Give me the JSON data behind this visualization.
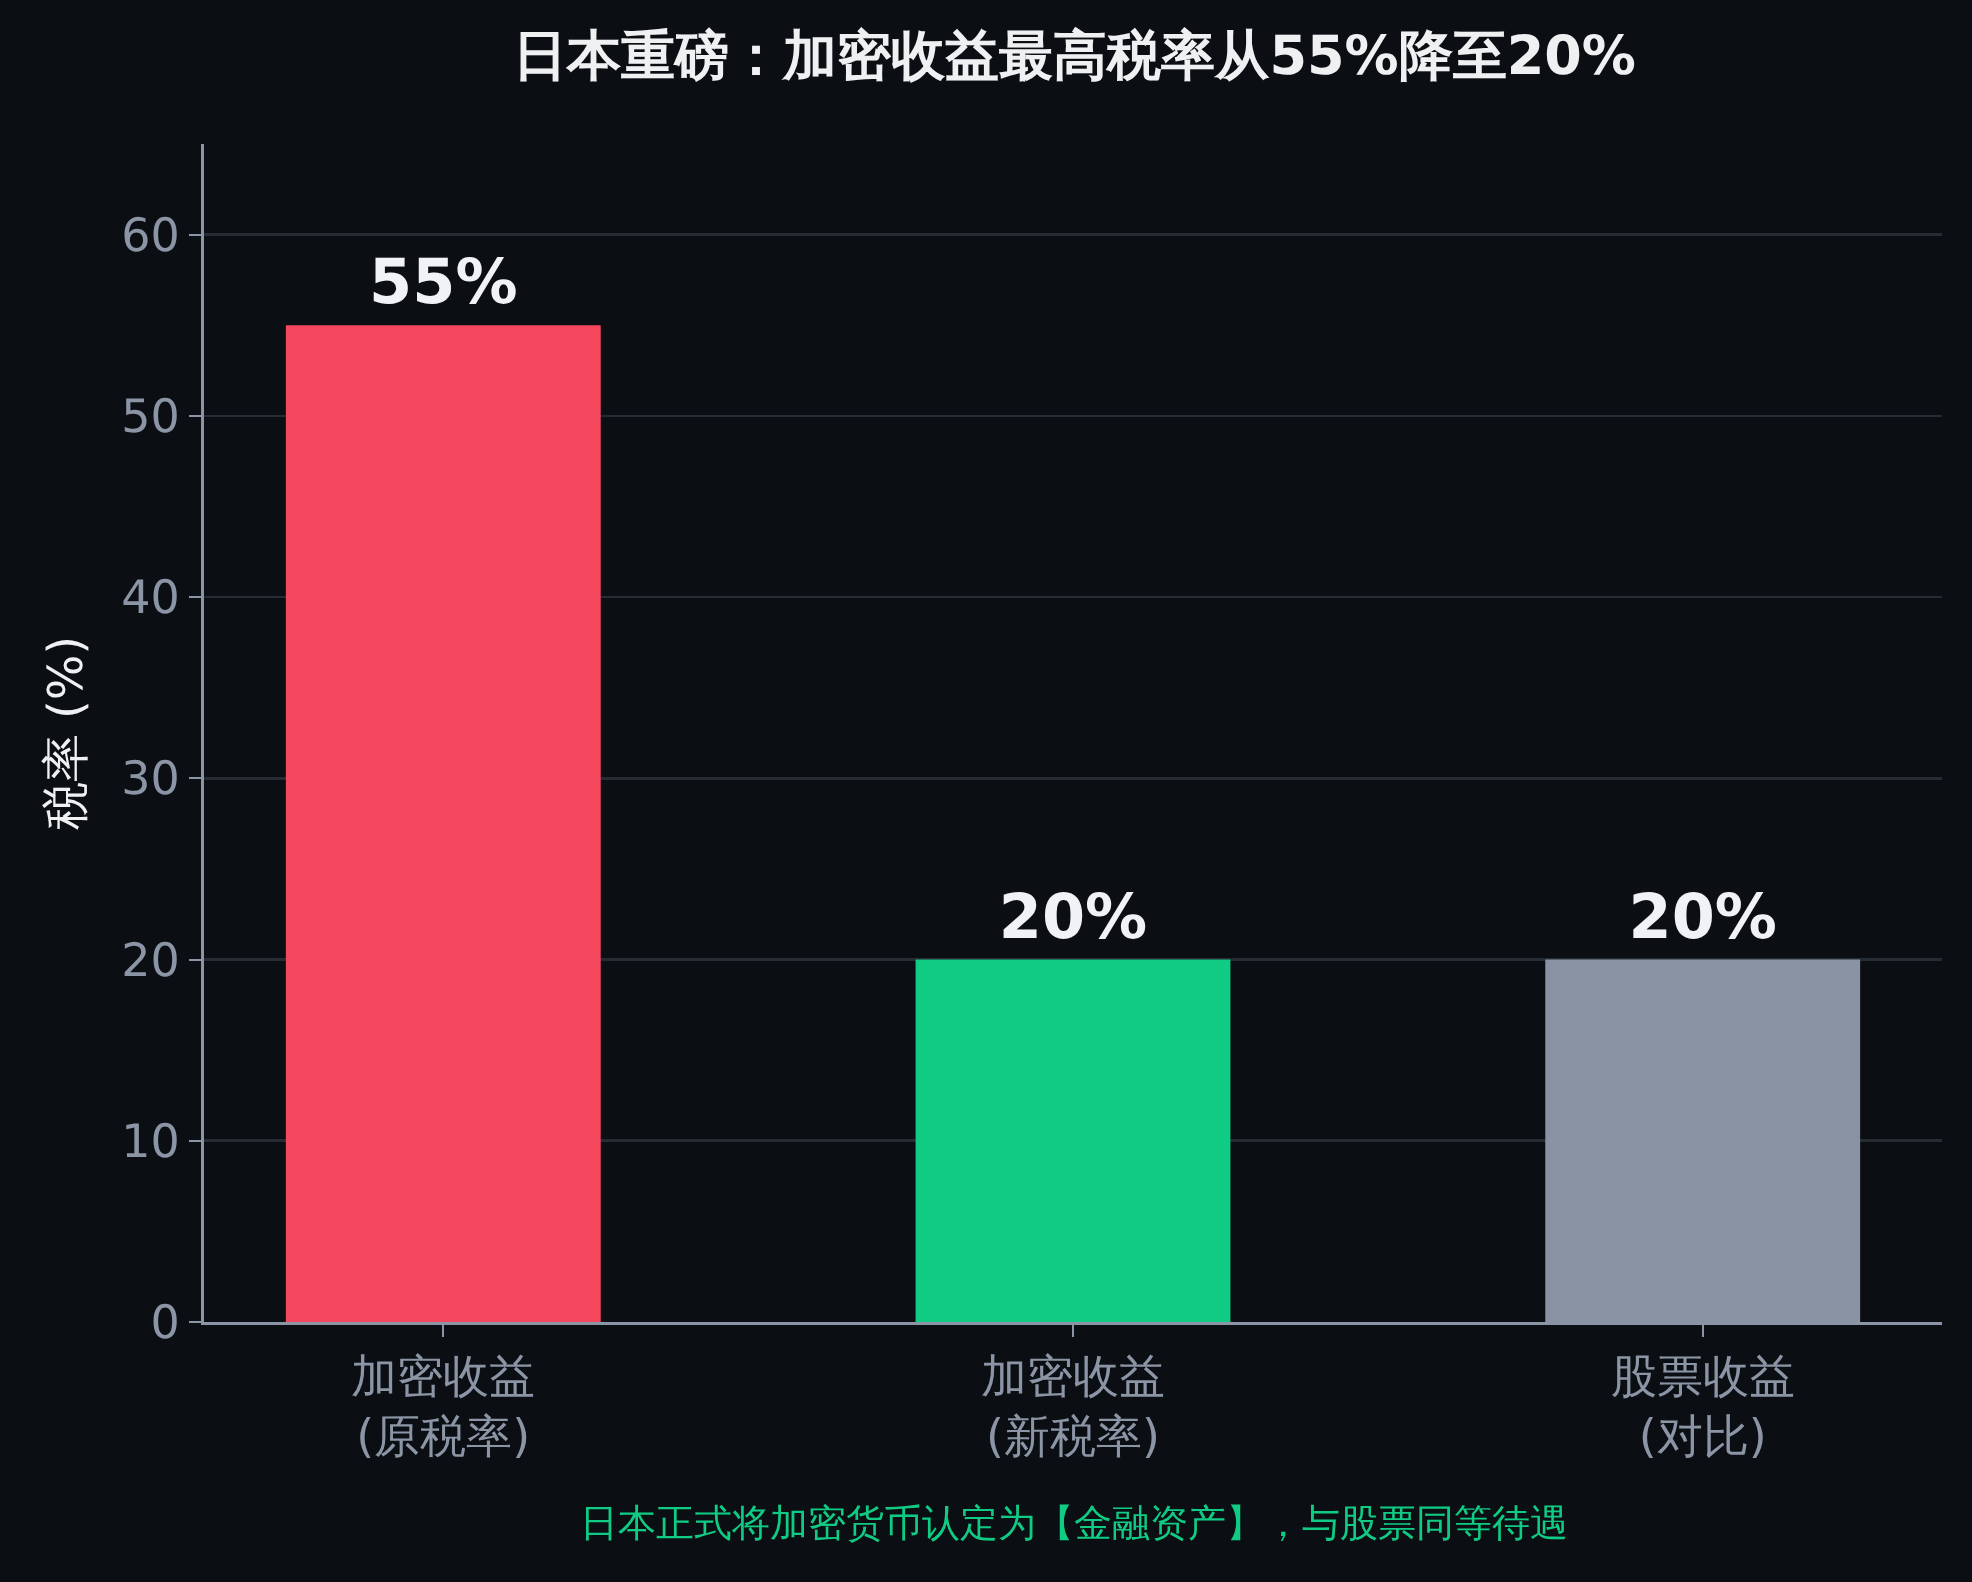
{
  "chart_data": {
    "type": "bar",
    "title": "日本重磅：加密收益最高税率从55%降至20%",
    "ylabel": "税率 (%)",
    "categories": [
      "加密收益\n(原税率)",
      "加密收益\n(新税率)",
      "股票收益\n(对比)"
    ],
    "values": [
      55,
      20,
      20
    ],
    "colors": [
      "#f5475e",
      "#10cb84",
      "#8a93a3"
    ],
    "value_labels": [
      "55%",
      "20%",
      "20%"
    ],
    "ylim": [
      0,
      65
    ],
    "yticks": [
      0,
      10,
      20,
      30,
      40,
      50,
      60
    ],
    "grid": "y",
    "annotations": [
      "日本正式将加密货币认定为【金融资产】，与股票同等待遇"
    ]
  }
}
